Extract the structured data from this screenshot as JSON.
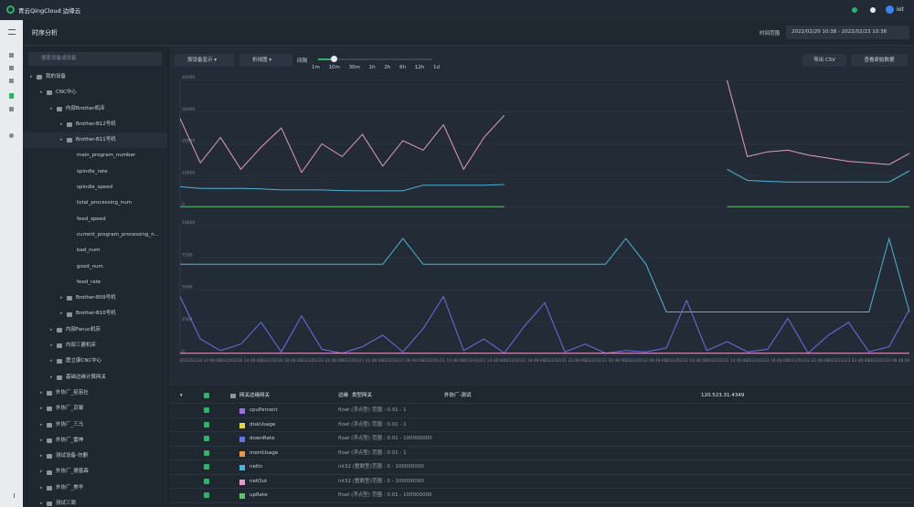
{
  "header": {
    "logo": "青云QingCloud 边缘云",
    "user": "iot",
    "page_title": "时序分析",
    "time_range_label": "时间范围",
    "time_range": "2022/02/20 10:38 - 2022/02/23 10:38"
  },
  "sidebar": {
    "search_placeholder": "搜索设备或设备",
    "tree": [
      "我的设备",
      "CNC中心",
      "内部Brother机床",
      "Brother-B12号机",
      "Brother-B11号机",
      "main_program_number",
      "spindle_rate",
      "spindle_speed",
      "total_processing_num",
      "feed_speed",
      "current_program_processing_n...",
      "bad_num",
      "good_num",
      "feed_rate",
      "Brother-B09号机",
      "Brother-B10号机",
      "内部Fanuc机床",
      "内部三菱机床",
      "震立康CNC中心",
      "基础边缘计算网关",
      "外协厂_疫苗社",
      "外协厂_京聚",
      "外协厂_三马",
      "外协厂_雷神",
      "测试设备-勿删",
      "外协厂_德普森",
      "外协厂_美华",
      "测试三周"
    ]
  },
  "toolbar": {
    "display_mode": "按设备显示",
    "chart_kind": "折线图",
    "interval_label": "间隔",
    "intervals": [
      "1m",
      "10m",
      "30m",
      "1h",
      "2h",
      "6h",
      "12h",
      "1d"
    ],
    "export": "导出 CSV",
    "raw": "查看原始数据"
  },
  "chart_data": [
    {
      "type": "line",
      "xlim": [
        0,
        72
      ],
      "ylim": [
        0,
        40000
      ],
      "yticks": [
        0,
        10000,
        20000,
        30000,
        40000
      ],
      "x": [
        0,
        2,
        4,
        6,
        8,
        10,
        12,
        14,
        16,
        18,
        20,
        22,
        24,
        26,
        28,
        30,
        32,
        34,
        36,
        38,
        40,
        42,
        44,
        46,
        48,
        50,
        52,
        54,
        56,
        58,
        60,
        62,
        64,
        66,
        68,
        70,
        72
      ],
      "series": [
        {
          "color": "#e39ac6",
          "values": [
            28000,
            14000,
            22000,
            12000,
            19000,
            25000,
            11000,
            20000,
            16000,
            23000,
            13000,
            21000,
            18000,
            26000,
            12000,
            22000,
            29000,
            null,
            null,
            null,
            null,
            null,
            null,
            null,
            null,
            null,
            null,
            40000,
            16000,
            17500,
            18000,
            16500,
            15500,
            14500,
            14000,
            13500,
            17000
          ]
        },
        {
          "color": "#4db3d6",
          "values": [
            6500,
            6000,
            6000,
            6000,
            5800,
            5500,
            5500,
            5500,
            5300,
            5200,
            5200,
            5200,
            7000,
            7000,
            7000,
            7000,
            7200,
            null,
            null,
            null,
            null,
            null,
            null,
            null,
            null,
            null,
            null,
            12000,
            8500,
            8200,
            8000,
            8000,
            8000,
            8000,
            8000,
            8000,
            11500
          ]
        },
        {
          "color": "#5cc46e",
          "values": [
            200,
            200,
            200,
            200,
            200,
            200,
            200,
            200,
            200,
            200,
            200,
            200,
            200,
            200,
            200,
            200,
            200,
            null,
            null,
            null,
            null,
            null,
            null,
            null,
            null,
            null,
            null,
            200,
            200,
            200,
            200,
            200,
            200,
            200,
            200,
            200,
            200
          ]
        }
      ]
    },
    {
      "type": "line",
      "xlim": [
        0,
        72
      ],
      "ylim": [
        0,
        10000
      ],
      "yticks": [
        0,
        2500,
        5000,
        7500,
        10000
      ],
      "xticks": [
        {
          "value": 0,
          "label": "2022/02/20 10:48:00"
        },
        {
          "value": 4,
          "label": "2022/02/20 14:48:00"
        },
        {
          "value": 8,
          "label": "2022/02/20 18:48:00"
        },
        {
          "value": 12,
          "label": "2022/02/20 22:48:00"
        },
        {
          "value": 16,
          "label": "2022/02/21 02:48:00"
        },
        {
          "value": 20,
          "label": "2022/02/21 06:48:00"
        },
        {
          "value": 24,
          "label": "2022/02/21 10:48:00"
        },
        {
          "value": 28,
          "label": "2022/02/21 14:48:00"
        },
        {
          "value": 32,
          "label": "2022/02/21 18:48:00"
        },
        {
          "value": 36,
          "label": "2022/02/21 22:48:00"
        },
        {
          "value": 40,
          "label": "2022/02/22 02:48:00"
        },
        {
          "value": 44,
          "label": "2022/02/22 06:48:00"
        },
        {
          "value": 48,
          "label": "2022/02/22 10:48:00"
        },
        {
          "value": 52,
          "label": "2022/02/22 14:48:00"
        },
        {
          "value": 56,
          "label": "2022/02/22 18:48:00"
        },
        {
          "value": 60,
          "label": "2022/02/22 22:48:00"
        },
        {
          "value": 64,
          "label": "2022/02/23 02:48:00"
        },
        {
          "value": 68,
          "label": "2022/02/23 06:48:00"
        }
      ],
      "x": [
        0,
        2,
        4,
        6,
        8,
        10,
        12,
        14,
        16,
        18,
        20,
        22,
        24,
        26,
        28,
        30,
        32,
        34,
        36,
        38,
        40,
        42,
        44,
        46,
        48,
        50,
        52,
        54,
        56,
        58,
        60,
        62,
        64,
        66,
        68,
        70,
        72
      ],
      "series": [
        {
          "color": "#4db3d6",
          "values": [
            7000,
            7000,
            7000,
            7000,
            7000,
            7000,
            7000,
            7000,
            7000,
            7000,
            7000,
            9000,
            7000,
            7000,
            7000,
            7000,
            7000,
            7000,
            7000,
            7000,
            7000,
            7000,
            9000,
            7000,
            3300,
            3300,
            3300,
            3300,
            3300,
            3300,
            3300,
            3300,
            3300,
            3300,
            3300,
            9000,
            3300
          ]
        },
        {
          "color": "#6b6fe0",
          "values": [
            4500,
            1200,
            300,
            800,
            2500,
            200,
            3000,
            400,
            100,
            600,
            1500,
            200,
            2000,
            4500,
            300,
            1200,
            100,
            2200,
            4000,
            200,
            800,
            100,
            300,
            200,
            500,
            4200,
            300,
            1000,
            200,
            400,
            2800,
            100,
            1500,
            2500,
            200,
            600,
            3500
          ]
        },
        {
          "color": "#e39ac6",
          "values": [
            100,
            100,
            100,
            100,
            100,
            100,
            100,
            100,
            100,
            100,
            100,
            100,
            100,
            100,
            100,
            100,
            100,
            100,
            100,
            100,
            100,
            100,
            100,
            100,
            100,
            100,
            100,
            100,
            100,
            100,
            100,
            100,
            100,
            100,
            100,
            100,
            100
          ]
        }
      ]
    }
  ],
  "table": {
    "header": [
      "网关边缘网关",
      "边缘",
      "类型网关",
      "外协厂-测试",
      "120.523.31.4349"
    ],
    "rows": [
      {
        "name": "cpuPercent",
        "color": "#9b6fe0",
        "type": "float (浮点型)",
        "range": "范围 : 0.01 - 1"
      },
      {
        "name": "diskUsage",
        "color": "#e6d34a",
        "type": "float (浮点型)",
        "range": "范围 : 0.01 - 1"
      },
      {
        "name": "downRate",
        "color": "#6b6fe0",
        "type": "float (浮点型)",
        "range": "范围 : 0.01 - 100000000"
      },
      {
        "name": "memUsage",
        "color": "#e8964a",
        "type": "float (浮点型)",
        "range": "范围 : 0.01 - 1"
      },
      {
        "name": "netIn",
        "color": "#4db3d6",
        "type": "int32 (整数型)",
        "range": "范围 : 0 - 100000000"
      },
      {
        "name": "netOut",
        "color": "#e39ac6",
        "type": "int32 (整数型)",
        "range": "范围 : 0 - 100000000"
      },
      {
        "name": "upRate",
        "color": "#5cc46e",
        "type": "float (浮点型)",
        "range": "范围 : 0.01 - 100000000"
      }
    ]
  }
}
